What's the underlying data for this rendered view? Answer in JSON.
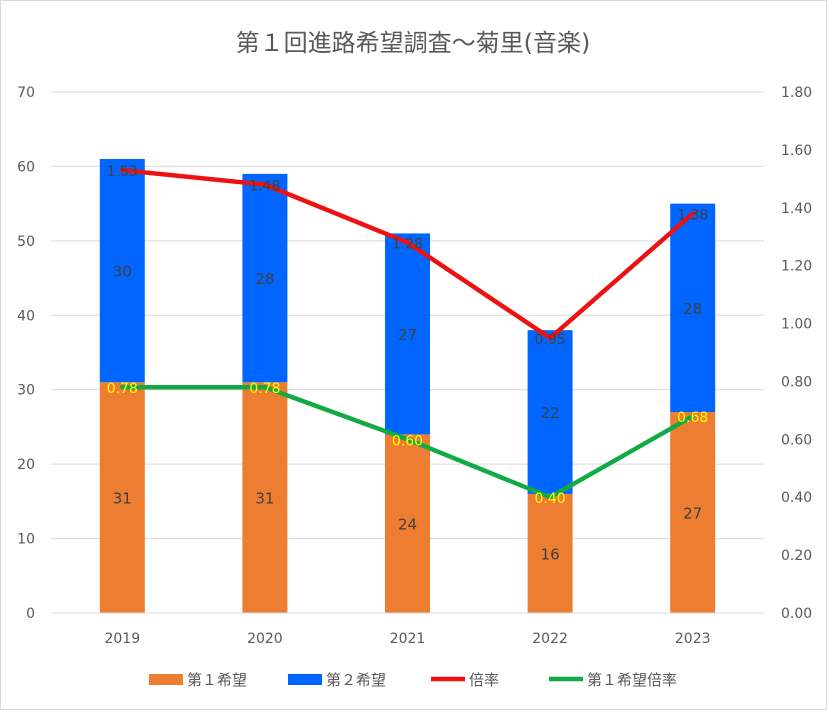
{
  "chart_data": {
    "type": "bar",
    "title": "第１回進路希望調査～菊里(音楽)",
    "categories": [
      "2019",
      "2020",
      "2021",
      "2022",
      "2023"
    ],
    "y_left": {
      "ticks": [
        "0",
        "10",
        "20",
        "30",
        "40",
        "50",
        "60",
        "70"
      ],
      "min": 0,
      "max": 70
    },
    "y_right": {
      "ticks": [
        "0.00",
        "0.20",
        "0.40",
        "0.60",
        "0.80",
        "1.00",
        "1.20",
        "1.40",
        "1.60",
        "1.80"
      ],
      "min": 0,
      "max": 1.8
    },
    "grid": true,
    "legend_position": "bottom",
    "bar_series": [
      {
        "name": "第１希望",
        "color": "#ED7D31",
        "label_color": "#404040",
        "values": [
          31,
          31,
          24,
          16,
          27
        ],
        "labels": [
          "31",
          "31",
          "24",
          "16",
          "27"
        ]
      },
      {
        "name": "第２希望",
        "color": "#0066FF",
        "label_color": "#404040",
        "values": [
          30,
          28,
          27,
          22,
          28
        ],
        "labels": [
          "30",
          "28",
          "27",
          "22",
          "28"
        ]
      }
    ],
    "line_series": [
      {
        "name": "倍率",
        "color": "#EE1111",
        "label_color": "#404040",
        "values": [
          1.53,
          1.48,
          1.28,
          0.95,
          1.38
        ],
        "labels": [
          "1.53",
          "1.48",
          "1.28",
          "0.95",
          "1.38"
        ]
      },
      {
        "name": "第１希望倍率",
        "color": "#11AA44",
        "label_color": "#FFFF00",
        "values": [
          0.78,
          0.78,
          0.6,
          0.4,
          0.68
        ],
        "labels": [
          "0.78",
          "0.78",
          "0.60",
          "0.40",
          "0.68"
        ]
      }
    ]
  }
}
